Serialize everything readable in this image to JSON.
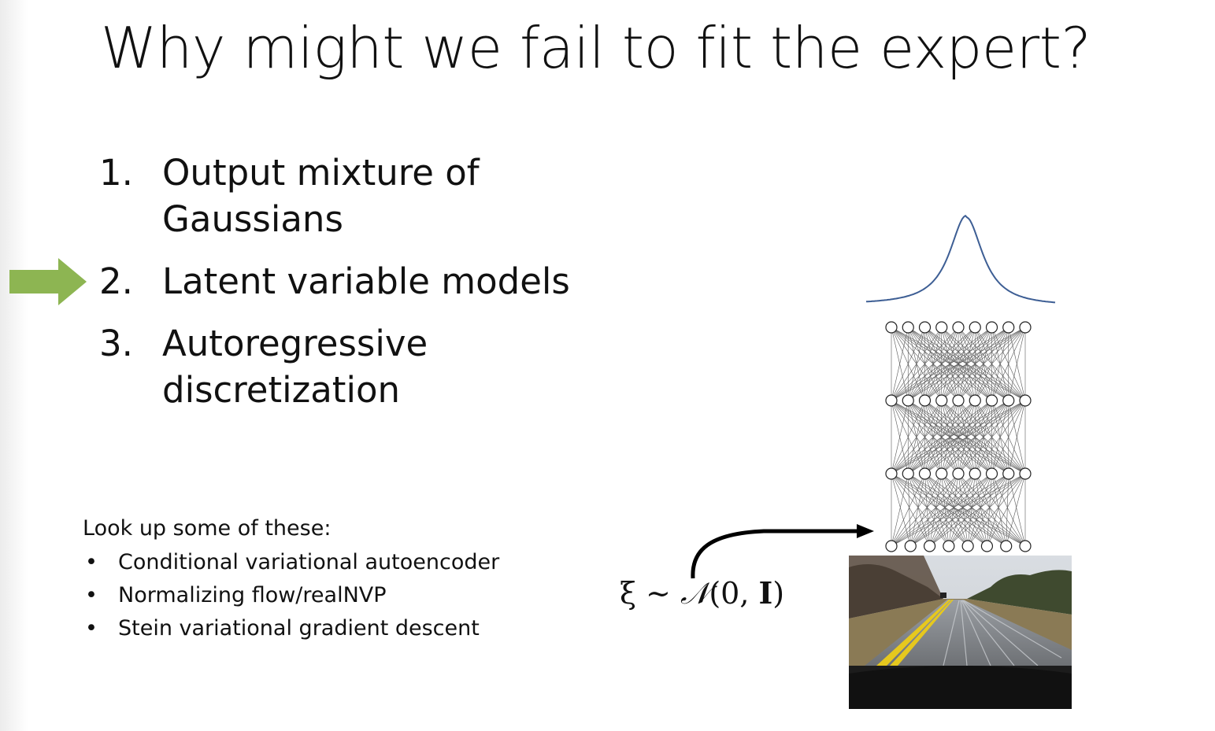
{
  "slide": {
    "title": "Why might we fail to fit the expert?",
    "items": [
      {
        "num": "1.",
        "text": "Output mixture of Gaussians"
      },
      {
        "num": "2.",
        "text": "Latent variable models"
      },
      {
        "num": "3.",
        "text": "Autoregressive discretization"
      }
    ],
    "highlighted_item": 2,
    "arrow_color": "#8db552",
    "refs": {
      "heading": "Look up some of these:",
      "bullet": "•",
      "items": [
        "Conditional variational autoencoder",
        "Normalizing flow/realNVP",
        "Stein variational gradient descent"
      ]
    },
    "formula": {
      "xi": "ξ",
      "sim": " ∼ ",
      "cal_n": "𝒩",
      "open": "(0, ",
      "bold_i": "I",
      "close": ")"
    }
  },
  "colors": {
    "curve": "#3d5e94",
    "road_marking": "#e6c81e"
  }
}
